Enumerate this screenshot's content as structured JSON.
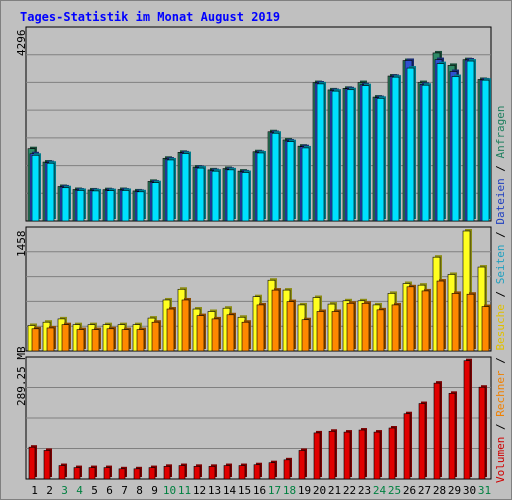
{
  "title": "Tages-Statistik im Monat August 2019",
  "legend": {
    "items": [
      {
        "label": "Volumen",
        "color": "#d00000"
      },
      {
        "label": "Rechner",
        "color": "#f08000"
      },
      {
        "label": "Besuche",
        "color": "#e0c000"
      },
      {
        "label": "Seiten",
        "color": "#20a0c0"
      },
      {
        "label": "Dateien",
        "color": "#2040c0"
      },
      {
        "label": "Anfragen",
        "color": "#208060"
      }
    ],
    "separator": " / "
  },
  "colors": {
    "background": "#c0c0c0",
    "title": "#0000ff",
    "weekend_day": "#008040",
    "weekday": "#000000",
    "anfragen": "#2e8b68",
    "dateien": "#3050d0",
    "seiten": "#00e0ff",
    "besuche": "#ffff20",
    "rechner": "#ff8800",
    "volumen": "#e00000"
  },
  "chart_data": [
    {
      "type": "bar",
      "name": "hits",
      "ymax_label": "4296",
      "ylim": [
        0,
        4296
      ],
      "categories": [
        "1",
        "2",
        "3",
        "4",
        "5",
        "6",
        "7",
        "8",
        "9",
        "10",
        "11",
        "12",
        "13",
        "14",
        "15",
        "16",
        "17",
        "18",
        "19",
        "20",
        "21",
        "22",
        "23",
        "24",
        "25",
        "26",
        "27",
        "28",
        "29",
        "30",
        "31"
      ],
      "series": [
        {
          "name": "Anfragen",
          "values": [
            1635,
            1333,
            780,
            712,
            702,
            708,
            712,
            680,
            896,
            1418,
            1553,
            1220,
            1156,
            1187,
            1128,
            1566,
            2018,
            1832,
            1692,
            3130,
            2964,
            3000,
            3130,
            2802,
            3278,
            3628,
            3130,
            3800,
            3518,
            3648,
            3200
          ]
        },
        {
          "name": "Dateien",
          "values": [
            1520,
            1320,
            770,
            700,
            690,
            696,
            700,
            670,
            880,
            1400,
            1540,
            1210,
            1140,
            1170,
            1110,
            1550,
            2000,
            1810,
            1680,
            3120,
            2950,
            2990,
            3080,
            2790,
            3270,
            3630,
            3090,
            3650,
            3380,
            3640,
            3190
          ]
        },
        {
          "name": "Seiten",
          "values": [
            1486,
            1306,
            752,
            690,
            680,
            686,
            690,
            660,
            866,
            1380,
            1524,
            1196,
            1126,
            1156,
            1096,
            1538,
            1984,
            1794,
            1652,
            3100,
            2936,
            2968,
            3060,
            2774,
            3252,
            3458,
            3070,
            3558,
            3266,
            3616,
            3184
          ]
        }
      ]
    },
    {
      "type": "bar",
      "name": "visits",
      "ymax_label": "1458",
      "ylim": [
        0,
        1458
      ],
      "categories": [
        "1",
        "2",
        "3",
        "4",
        "5",
        "6",
        "7",
        "8",
        "9",
        "10",
        "11",
        "12",
        "13",
        "14",
        "15",
        "16",
        "17",
        "18",
        "19",
        "20",
        "21",
        "22",
        "23",
        "24",
        "25",
        "26",
        "27",
        "28",
        "29",
        "30",
        "31"
      ],
      "series": [
        {
          "name": "Besuche",
          "values": [
            310,
            350,
            390,
            320,
            320,
            320,
            320,
            320,
            400,
            620,
            750,
            510,
            480,
            520,
            410,
            660,
            860,
            740,
            560,
            650,
            570,
            610,
            610,
            560,
            700,
            820,
            800,
            1140,
            930,
            1458,
            1020
          ]
        },
        {
          "name": "Rechner",
          "values": [
            270,
            280,
            320,
            260,
            260,
            270,
            260,
            260,
            350,
            510,
            620,
            430,
            390,
            440,
            350,
            560,
            740,
            600,
            380,
            480,
            480,
            580,
            580,
            500,
            560,
            780,
            730,
            850,
            700,
            690,
            540
          ]
        }
      ]
    },
    {
      "type": "bar",
      "name": "volume",
      "ymax_label": "289.25 MB",
      "ylim": [
        0,
        289.25
      ],
      "categories": [
        "1",
        "2",
        "3",
        "4",
        "5",
        "6",
        "7",
        "8",
        "9",
        "10",
        "11",
        "12",
        "13",
        "14",
        "15",
        "16",
        "17",
        "18",
        "19",
        "20",
        "21",
        "22",
        "23",
        "24",
        "25",
        "26",
        "27",
        "28",
        "29",
        "30",
        "31"
      ],
      "series": [
        {
          "name": "Volumen",
          "values": [
            78.0,
            70.0,
            33.0,
            28.0,
            28.0,
            28.0,
            25.0,
            25.0,
            28.0,
            31.0,
            33.0,
            31.0,
            31.0,
            33.0,
            33.0,
            35.0,
            40.0,
            47.0,
            70.0,
            113.0,
            117.0,
            115.0,
            120.0,
            115.0,
            125.0,
            160.0,
            185.0,
            235.0,
            210.0,
            290.0,
            225.0
          ]
        }
      ]
    }
  ],
  "x_axis": {
    "weekend_days": [
      "3",
      "4",
      "10",
      "11",
      "17",
      "18",
      "24",
      "25",
      "31"
    ]
  }
}
